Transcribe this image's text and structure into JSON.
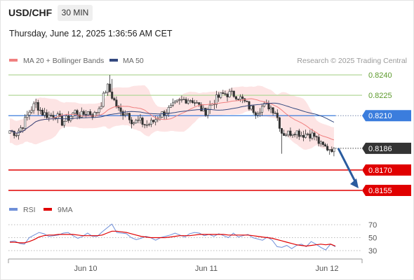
{
  "header": {
    "symbol": "USD/CHF",
    "timeframe": "30 MIN",
    "datetime": "Thursday, June 12, 2025 1:36:56 AM CET"
  },
  "credit": "Research © 2025 Trading Central",
  "colors": {
    "bull": "#ffffff",
    "bear": "#333333",
    "wick": "#333333",
    "bollinger_fill": "#fde4e4",
    "ma20": "#f08080",
    "ma50": "#34497f",
    "green_level": "#b4d89a",
    "green_text": "#5d9a2c",
    "blue_level": "#3b7ddd",
    "red_level": "#e00000",
    "current": "#333333",
    "arrow": "#2a5b9e",
    "rsi": "#6f8fd8",
    "rsi_ma": "#e00000"
  },
  "chart_data": [
    {
      "type": "candlestick",
      "title": "USD/CHF",
      "timeframe": "30 MIN",
      "legend": [
        "MA 20 + Bollinger Bands",
        "MA 50"
      ],
      "legend_placement": "top-left",
      "x_ticks": [
        "Jun 10",
        "Jun 11",
        "Jun 12"
      ],
      "ylim": [
        0.815,
        0.8245
      ],
      "levels": [
        {
          "label": "0.8240",
          "value": 0.824,
          "style": "green"
        },
        {
          "label": "0.8225",
          "value": 0.8225,
          "style": "green"
        },
        {
          "label": "0.8210",
          "value": 0.821,
          "style": "blue"
        },
        {
          "label": "0.8186",
          "value": 0.8186,
          "style": "current"
        },
        {
          "label": "0.8170",
          "value": 0.817,
          "style": "red"
        },
        {
          "label": "0.8155",
          "value": 0.8155,
          "style": "red"
        }
      ],
      "projection": {
        "from": 0.8186,
        "to": 0.8155
      },
      "close_anchors": [
        0.8199,
        0.8197,
        0.8203,
        0.8213,
        0.8219,
        0.8212,
        0.821,
        0.8211,
        0.8205,
        0.8208,
        0.8213,
        0.821,
        0.8213,
        0.821,
        0.8218,
        0.8232,
        0.8222,
        0.8212,
        0.8213,
        0.8205,
        0.8206,
        0.8203,
        0.8205,
        0.821,
        0.8213,
        0.8216,
        0.822,
        0.8222,
        0.8222,
        0.8218,
        0.8212,
        0.8218,
        0.8223,
        0.8226,
        0.8226,
        0.8225,
        0.8221,
        0.8216,
        0.8213,
        0.8217,
        0.8217,
        0.8213,
        0.8197,
        0.8197,
        0.8199,
        0.8196,
        0.8197,
        0.8195,
        0.8188,
        0.8186,
        0.8186
      ]
    },
    {
      "type": "line",
      "title": "RSI",
      "legend": [
        "RSI",
        "9MA"
      ],
      "legend_placement": "top-left",
      "y_ticks": [
        70,
        50,
        30
      ],
      "ylim": [
        20,
        80
      ],
      "series": [
        {
          "name": "RSI",
          "values": [
            44,
            45,
            41,
            40,
            50,
            54,
            58,
            56,
            52,
            53,
            54,
            57,
            58,
            53,
            49,
            52,
            57,
            52,
            52,
            59,
            65,
            71,
            58,
            57,
            56,
            50,
            47,
            49,
            52,
            50,
            46,
            50,
            52,
            54,
            57,
            54,
            51,
            56,
            58,
            57,
            53,
            55,
            52,
            56,
            53,
            50,
            57,
            51,
            53,
            55,
            50,
            48,
            46,
            51,
            46,
            36,
            35,
            38,
            33,
            38,
            40,
            36,
            44,
            40,
            35,
            31,
            40,
            36
          ]
        },
        {
          "name": "9MA",
          "values": [
            43,
            43,
            42,
            42,
            44,
            47,
            51,
            53,
            54,
            54,
            55,
            55,
            55,
            55,
            54,
            53,
            53,
            53,
            53,
            54,
            57,
            60,
            60,
            59,
            58,
            56,
            54,
            52,
            51,
            50,
            50,
            50,
            50,
            51,
            52,
            53,
            53,
            53,
            54,
            55,
            55,
            55,
            55,
            55,
            55,
            54,
            54,
            54,
            54,
            54,
            53,
            52,
            51,
            50,
            49,
            47,
            45,
            43,
            41,
            39,
            38,
            37,
            38,
            39,
            40,
            39,
            40,
            37
          ]
        }
      ]
    }
  ]
}
